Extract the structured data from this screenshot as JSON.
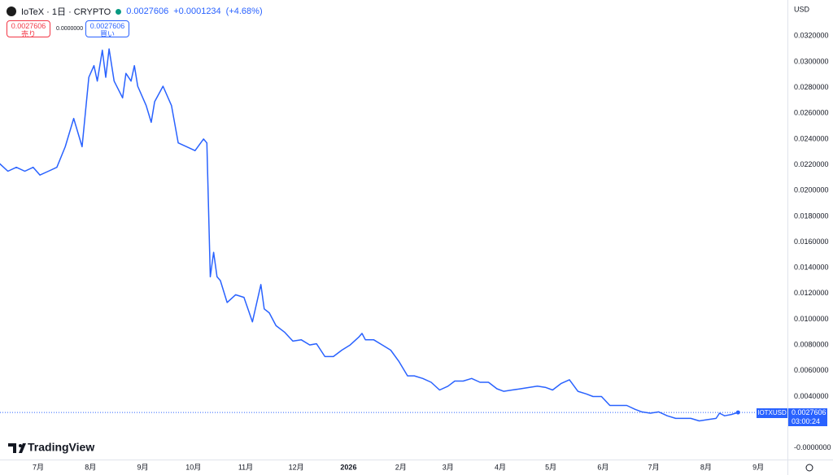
{
  "header": {
    "symbol": "IoTeX · 1日 · CRYPTO",
    "price": 0.0027606,
    "change": "+0.0001234",
    "change_pct": "(+4.68%)"
  },
  "trade": {
    "sell_price": 0.0027606,
    "sell_label": "売り",
    "spread": "0.0000000",
    "buy_price": 0.0027606,
    "buy_label": "買い"
  },
  "currency": "USD",
  "price_label": {
    "symbol": "IOTXUSD",
    "price": 0.0027606,
    "countdown": "03:00:24"
  },
  "brand": "TradingView",
  "chart_data": {
    "type": "line",
    "color": "#2962ff",
    "grid": false,
    "xlim": [
      -22.7,
      444.3
    ],
    "ylim": [
      -0.0009,
      0.0348
    ],
    "xticks": [
      {
        "value": 0,
        "label": "7月"
      },
      {
        "value": 31,
        "label": "8月"
      },
      {
        "value": 62,
        "label": "9月"
      },
      {
        "value": 92,
        "label": "10月"
      },
      {
        "value": 123,
        "label": "11月"
      },
      {
        "value": 153,
        "label": "12月"
      },
      {
        "value": 184,
        "label": "2026"
      },
      {
        "value": 215,
        "label": "2月"
      },
      {
        "value": 243,
        "label": "3月"
      },
      {
        "value": 274,
        "label": "4月"
      },
      {
        "value": 304,
        "label": "5月"
      },
      {
        "value": 335,
        "label": "6月"
      },
      {
        "value": 365,
        "label": "7月"
      },
      {
        "value": 396,
        "label": "8月"
      },
      {
        "value": 427,
        "label": "9月"
      }
    ],
    "yticks": [
      {
        "value": 0.032,
        "label": "0.0320000"
      },
      {
        "value": 0.03,
        "label": "0.0300000"
      },
      {
        "value": 0.028,
        "label": "0.0280000"
      },
      {
        "value": 0.026,
        "label": "0.0260000"
      },
      {
        "value": 0.024,
        "label": "0.0240000"
      },
      {
        "value": 0.022,
        "label": "0.0220000"
      },
      {
        "value": 0.02,
        "label": "0.0200000"
      },
      {
        "value": 0.018,
        "label": "0.0180000"
      },
      {
        "value": 0.016,
        "label": "0.0160000"
      },
      {
        "value": 0.014,
        "label": "0.0140000"
      },
      {
        "value": 0.012,
        "label": "0.0120000"
      },
      {
        "value": 0.01,
        "label": "0.0100000"
      },
      {
        "value": 0.008,
        "label": "0.0080000"
      },
      {
        "value": 0.006,
        "label": "0.0060000"
      },
      {
        "value": 0.004,
        "label": "0.0040000"
      },
      {
        "value": 0,
        "label": "-0.0000000"
      }
    ],
    "last_value": 0.0027606,
    "x": [
      -23,
      -18,
      -13,
      -8,
      -3,
      1,
      6,
      11,
      16,
      21,
      26,
      30,
      33,
      35,
      38,
      40,
      42,
      45,
      50,
      52,
      55,
      57,
      59,
      64,
      67,
      69,
      74,
      79,
      83,
      88,
      93,
      98,
      100,
      102,
      104,
      106,
      108,
      112,
      117,
      122,
      127,
      132,
      134,
      137,
      141,
      146,
      151,
      156,
      161,
      165,
      170,
      175,
      180,
      185,
      190,
      192,
      194,
      199,
      204,
      209,
      214,
      219,
      223,
      228,
      233,
      238,
      243,
      247,
      252,
      257,
      262,
      267,
      272,
      276,
      281,
      286,
      291,
      296,
      301,
      305,
      310,
      315,
      320,
      325,
      329,
      334,
      339,
      344,
      349,
      354,
      358,
      363,
      368,
      373,
      378,
      383,
      387,
      392,
      397,
      402,
      404,
      407,
      411,
      415
    ],
    "series": [
      {
        "name": "IOTXUSD",
        "color": "#2962ff",
        "values": [
          0.0221,
          0.0215,
          0.0218,
          0.0215,
          0.0218,
          0.0212,
          0.0215,
          0.0218,
          0.0234,
          0.0256,
          0.0234,
          0.0288,
          0.0297,
          0.0285,
          0.0309,
          0.0288,
          0.031,
          0.0285,
          0.0272,
          0.0291,
          0.0285,
          0.0297,
          0.0281,
          0.0266,
          0.0253,
          0.0269,
          0.0281,
          0.0266,
          0.0237,
          0.0234,
          0.0231,
          0.024,
          0.0237,
          0.0133,
          0.0152,
          0.0133,
          0.013,
          0.0113,
          0.0119,
          0.0117,
          0.0098,
          0.0127,
          0.0108,
          0.0105,
          0.0095,
          0.009,
          0.0083,
          0.0084,
          0.008,
          0.0081,
          0.0071,
          0.0071,
          0.0076,
          0.008,
          0.0086,
          0.0089,
          0.0084,
          0.0084,
          0.008,
          0.0076,
          0.0067,
          0.0056,
          0.0056,
          0.0054,
          0.0051,
          0.0045,
          0.0048,
          0.0052,
          0.0052,
          0.0054,
          0.0051,
          0.0051,
          0.0046,
          0.0044,
          0.0045,
          0.0046,
          0.0047,
          0.0048,
          0.0047,
          0.0045,
          0.005,
          0.0053,
          0.0044,
          0.0042,
          0.004,
          0.004,
          0.0033,
          0.0033,
          0.0033,
          0.003,
          0.0028,
          0.0027,
          0.0028,
          0.0025,
          0.0023,
          0.0023,
          0.0023,
          0.0021,
          0.0022,
          0.0023,
          0.0027,
          0.0025,
          0.0026,
          0.0027606
        ]
      }
    ]
  }
}
